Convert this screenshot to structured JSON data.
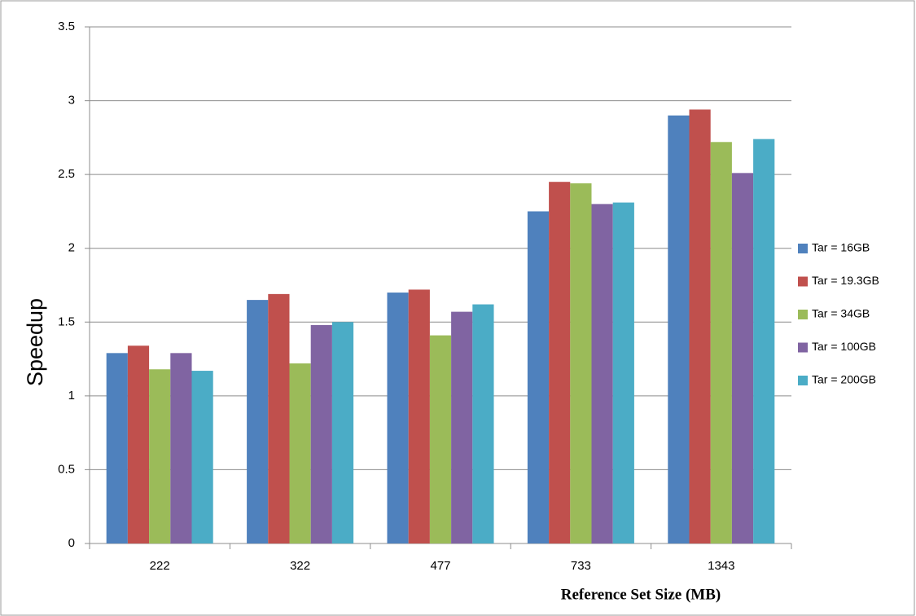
{
  "chart_data": {
    "type": "bar",
    "xlabel": "Reference Set Size (MB)",
    "ylabel": "Speedup",
    "categories": [
      "222",
      "322",
      "477",
      "733",
      "1343"
    ],
    "series": [
      {
        "name": "Tar = 16GB",
        "color": "#4f81bd",
        "values": [
          1.29,
          1.65,
          1.7,
          2.25,
          2.9
        ]
      },
      {
        "name": "Tar = 19.3GB",
        "color": "#c0504d",
        "values": [
          1.34,
          1.69,
          1.72,
          2.45,
          2.94
        ]
      },
      {
        "name": "Tar = 34GB",
        "color": "#9bbb59",
        "values": [
          1.18,
          1.22,
          1.41,
          2.44,
          2.72
        ]
      },
      {
        "name": "Tar = 100GB",
        "color": "#8064a2",
        "values": [
          1.29,
          1.48,
          1.57,
          2.3,
          2.51
        ]
      },
      {
        "name": "Tar = 200GB",
        "color": "#4bacc6",
        "values": [
          1.17,
          1.5,
          1.62,
          2.31,
          2.74
        ]
      }
    ],
    "ylim": [
      0,
      3.5
    ],
    "yticks": [
      0,
      0.5,
      1,
      1.5,
      2,
      2.5,
      3,
      3.5
    ],
    "grid": true,
    "legend": "right"
  }
}
